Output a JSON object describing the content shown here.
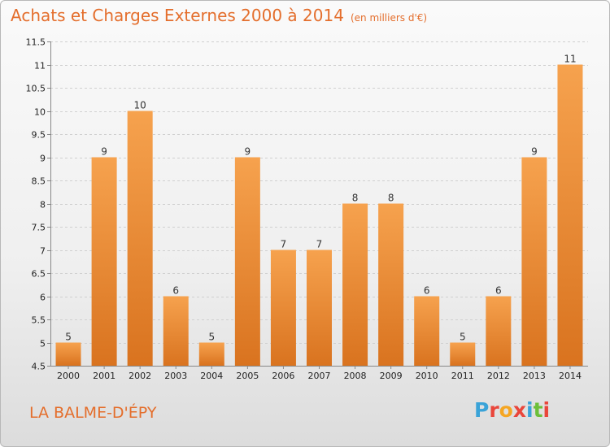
{
  "header": {
    "title": "Achats et Charges Externes 2000 à 2014",
    "unit": "(en milliers d'€)"
  },
  "footer": {
    "commune": "LA BALME-D'ÉPY",
    "brand": [
      "P",
      "r",
      "o",
      "x",
      "i",
      "t",
      "i"
    ]
  },
  "colors": {
    "bar_light": "#f6a24e",
    "bar_dark": "#d9731f",
    "title": "#e46e2c",
    "grid": "#d0d0d0"
  },
  "chart_data": {
    "type": "bar",
    "title": "Achats et Charges Externes 2000 à 2014",
    "subtitle": "(en milliers d'€)",
    "xlabel": "",
    "ylabel": "",
    "categories": [
      "2000",
      "2001",
      "2002",
      "2003",
      "2004",
      "2005",
      "2006",
      "2007",
      "2008",
      "2009",
      "2010",
      "2011",
      "2012",
      "2013",
      "2014"
    ],
    "values": [
      5,
      9,
      10,
      6,
      5,
      9,
      7,
      7,
      8,
      8,
      6,
      5,
      6,
      9,
      11
    ],
    "ylim": [
      4.5,
      11.5
    ],
    "yticks": [
      "4.5",
      "5",
      "5.5",
      "6",
      "6.5",
      "7",
      "7.5",
      "8",
      "8.5",
      "9",
      "9.5",
      "10",
      "10.5",
      "11",
      "11.5"
    ],
    "grid": true,
    "legend": "none"
  }
}
